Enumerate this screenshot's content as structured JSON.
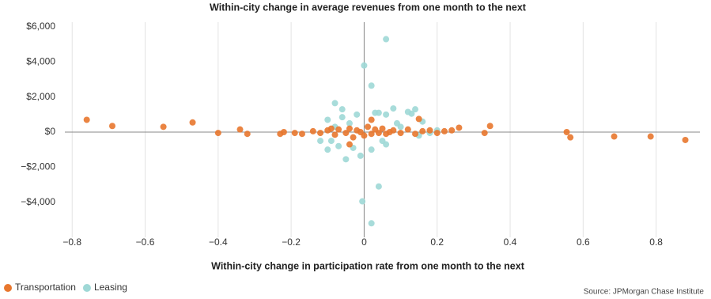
{
  "chart_data": {
    "type": "scatter",
    "title": "Within-city change in average revenues from one month to the next",
    "x_label": "Within-city change in participation rate from one month to the next",
    "source": "Source: JPMorgan Chase Institute",
    "xlim": [
      -0.82,
      0.92
    ],
    "xticks": [
      {
        "value": -0.8,
        "label": "−0.8"
      },
      {
        "value": -0.6,
        "label": "−0.6"
      },
      {
        "value": -0.4,
        "label": "−0.4"
      },
      {
        "value": -0.2,
        "label": "−0.2"
      },
      0,
      0.2,
      0.4,
      0.6,
      0.8
    ],
    "ylim": [
      -6000,
      6000
    ],
    "yticks": [
      {
        "value": -4000,
        "label": "−$4,000"
      },
      {
        "value": -2000,
        "label": "−$2,000"
      },
      {
        "value": 0,
        "label": "$0"
      },
      {
        "value": 2000,
        "label": "$2,000"
      },
      {
        "value": 4000,
        "label": "$4,000"
      },
      {
        "value": 6000,
        "label": "$6,000"
      }
    ],
    "grid": "x",
    "legend": "bottom-left",
    "series": [
      {
        "name": "Leasing",
        "color": "#9fd8d6",
        "x": [
          0.06,
          0,
          0.02,
          -0.08,
          -0.06,
          0.08,
          0.14,
          0.12,
          0.13,
          0.06,
          -0.02,
          -0.1,
          -0.06,
          0.04,
          -0.09,
          -0.1,
          -0.05,
          -0.01,
          0.02,
          -0.12,
          0.04,
          -0.005,
          0.02,
          0.18,
          0.2,
          0.1,
          -0.03,
          0.06,
          -0.08,
          0.09,
          -0.04,
          0.15,
          0.03,
          0.16,
          0.05,
          -0.07
        ],
        "values": [
          5300,
          3800,
          2650,
          1650,
          1300,
          1350,
          1300,
          1150,
          1050,
          1000,
          1000,
          700,
          850,
          1100,
          -500,
          -1000,
          -1550,
          -1350,
          -1000,
          -500,
          -3100,
          -3950,
          -5200,
          -50,
          100,
          300,
          -900,
          -700,
          300,
          500,
          500,
          -200,
          1100,
          600,
          -500,
          -800
        ]
      },
      {
        "name": "Transportation",
        "color": "#e8772e",
        "x": [
          -0.76,
          -0.69,
          -0.55,
          -0.47,
          -0.4,
          -0.34,
          -0.32,
          -0.23,
          -0.22,
          -0.19,
          -0.17,
          -0.14,
          -0.12,
          -0.1,
          -0.08,
          -0.07,
          -0.05,
          -0.04,
          -0.03,
          -0.02,
          -0.01,
          0,
          0.01,
          0.02,
          0.03,
          0.04,
          0.05,
          0.06,
          0.08,
          0.1,
          0.12,
          0.14,
          0.16,
          0.18,
          0.2,
          0.22,
          0.24,
          0.26,
          0.33,
          0.345,
          0.555,
          0.565,
          0.685,
          0.785,
          0.88,
          -0.04,
          0.15,
          0.02,
          -0.09,
          0.07
        ],
        "values": [
          700,
          350,
          300,
          550,
          -50,
          150,
          -100,
          -100,
          0,
          -50,
          -100,
          50,
          -50,
          100,
          -150,
          150,
          -50,
          200,
          -300,
          100,
          0,
          -200,
          300,
          -100,
          150,
          -50,
          200,
          -100,
          100,
          -50,
          150,
          -100,
          50,
          100,
          -50,
          50,
          100,
          250,
          -50,
          350,
          0,
          -300,
          -250,
          -250,
          -450,
          -700,
          750,
          700,
          200,
          0
        ]
      }
    ]
  }
}
